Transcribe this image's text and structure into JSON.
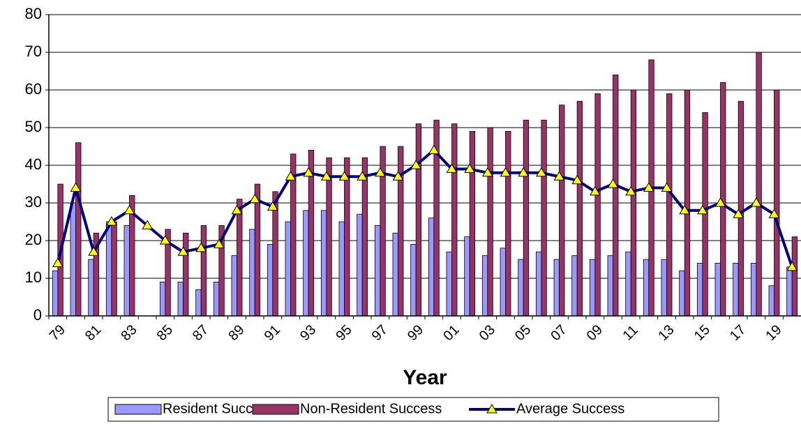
{
  "chart_data": {
    "type": "bar",
    "x_label": "Year",
    "categories": [
      "79",
      null,
      "81",
      null,
      "83",
      null,
      "85",
      null,
      "87",
      null,
      "89",
      null,
      "91",
      null,
      "93",
      null,
      "95",
      null,
      "97",
      null,
      "99",
      null,
      "01",
      null,
      "03",
      null,
      "05",
      null,
      "07",
      null,
      "09",
      null,
      "11",
      null,
      "13",
      null,
      "15",
      null,
      "17",
      null,
      "19",
      null
    ],
    "series": [
      {
        "name": "Resident Success",
        "type": "bar",
        "color": "#9999ff",
        "values": [
          12,
          30,
          15,
          25,
          24,
          0,
          9,
          9,
          7,
          9,
          16,
          23,
          19,
          25,
          28,
          28,
          25,
          27,
          24,
          22,
          19,
          26,
          17,
          21,
          16,
          18,
          15,
          17,
          15,
          16,
          15,
          16,
          17,
          15,
          15,
          12,
          14,
          14,
          14,
          14,
          8,
          13
        ]
      },
      {
        "name": "Non-Resident Success",
        "type": "bar",
        "color": "#993366",
        "values": [
          35,
          46,
          22,
          25,
          32,
          0,
          23,
          22,
          24,
          24,
          31,
          35,
          33,
          43,
          44,
          42,
          42,
          42,
          45,
          45,
          51,
          52,
          51,
          49,
          50,
          49,
          52,
          52,
          56,
          57,
          59,
          64,
          60,
          68,
          59,
          60,
          54,
          62,
          57,
          70,
          60,
          21
        ]
      },
      {
        "name": "Average Success",
        "type": "line",
        "color": "#000080",
        "marker_color": "#ffff00",
        "values": [
          14,
          34,
          17,
          25,
          28,
          24,
          20,
          17,
          18,
          19,
          28,
          31,
          29,
          37,
          38,
          37,
          37,
          37,
          38,
          37,
          40,
          44,
          39,
          39,
          38,
          38,
          38,
          38,
          37,
          36,
          33,
          35,
          33,
          34,
          34,
          28,
          28,
          30,
          27,
          30,
          27,
          13
        ]
      }
    ],
    "ylim": [
      0,
      80
    ],
    "yticks": [
      0,
      10,
      20,
      30,
      40,
      50,
      60,
      70,
      80
    ],
    "grid": true
  }
}
